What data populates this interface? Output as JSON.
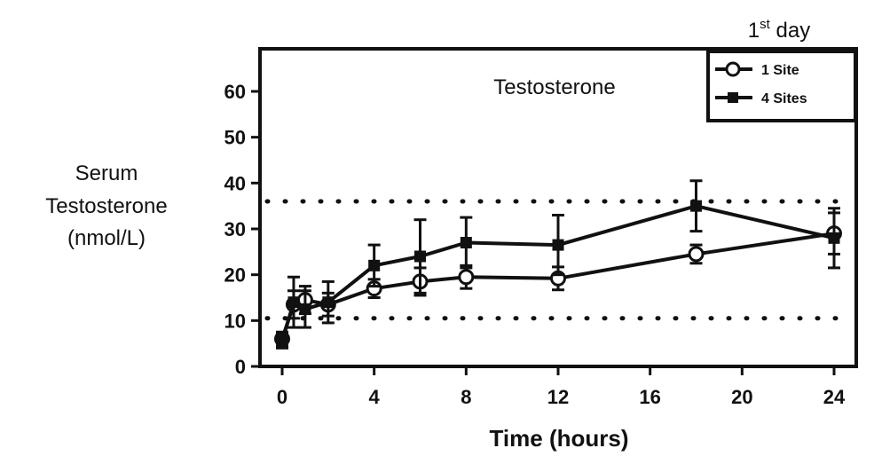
{
  "chart_data": {
    "type": "line",
    "title": "Testosterone",
    "corner_label": "1st day",
    "corner_label_base": "1",
    "corner_label_sup": "st",
    "corner_label_rest": " day",
    "xlabel": "Time (hours)",
    "ylabel_lines": [
      "Serum",
      "Testosterone",
      "(nmol/L)"
    ],
    "xlim": [
      0,
      24
    ],
    "ylim": [
      0,
      60
    ],
    "xticks": [
      0,
      4,
      8,
      12,
      16,
      20,
      24
    ],
    "yticks": [
      0,
      10,
      20,
      30,
      40,
      50,
      60
    ],
    "xtick_labels": [
      "0",
      "4",
      "8",
      "12",
      "16",
      "20",
      "24"
    ],
    "ytick_labels": [
      "0",
      "10",
      "20",
      "30",
      "40",
      "50",
      "60"
    ],
    "reference_lines": [
      10.5,
      36
    ],
    "legend_position": "top-right",
    "series": [
      {
        "name": "1 Site",
        "marker": "open-circle",
        "x": [
          0,
          0.5,
          1,
          2,
          4,
          6,
          8,
          12,
          18,
          24
        ],
        "y": [
          6,
          13.5,
          14.5,
          13.5,
          17,
          18.5,
          19.5,
          19.2,
          24.5,
          29
        ],
        "err": [
          1.5,
          3,
          3,
          2.5,
          2,
          3,
          2.5,
          2.5,
          2,
          4.5
        ]
      },
      {
        "name": "4 Sites",
        "marker": "filled-square",
        "x": [
          0,
          0.5,
          1,
          2,
          4,
          6,
          8,
          12,
          18,
          24
        ],
        "y": [
          5.5,
          14,
          12.5,
          14,
          22,
          24,
          27,
          26.5,
          35,
          28
        ],
        "err": [
          1.5,
          5.5,
          4,
          4.5,
          4.5,
          8,
          5.5,
          6.5,
          5.5,
          6.5
        ]
      }
    ]
  }
}
